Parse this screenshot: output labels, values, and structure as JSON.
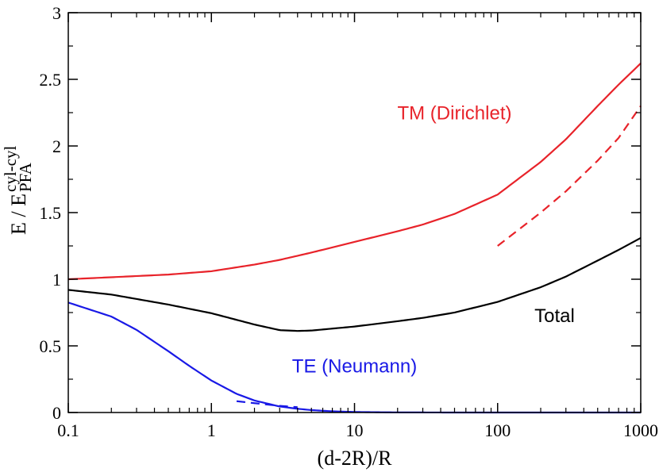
{
  "chart_data": {
    "type": "line",
    "title": "",
    "xlabel": "(d-2R)/R",
    "ylabel": {
      "main": "E / E",
      "superscript": "cyl-cyl",
      "subscript": "PFA"
    },
    "xscale": "log",
    "xlim": [
      0.1,
      1000
    ],
    "ylim": [
      0,
      3
    ],
    "xticks": [
      {
        "value": 0.1,
        "label": "0.1"
      },
      {
        "value": 1,
        "label": "1"
      },
      {
        "value": 10,
        "label": "10"
      },
      {
        "value": 100,
        "label": "100"
      },
      {
        "value": 1000,
        "label": "1000"
      }
    ],
    "yticks": [
      {
        "value": 0,
        "label": "0"
      },
      {
        "value": 0.5,
        "label": "0.5"
      },
      {
        "value": 1,
        "label": "1"
      },
      {
        "value": 1.5,
        "label": "1.5"
      },
      {
        "value": 2,
        "label": "2"
      },
      {
        "value": 2.5,
        "label": "2.5"
      },
      {
        "value": 3,
        "label": "3"
      }
    ],
    "grid": false,
    "series": [
      {
        "name": "TM (Dirichlet)",
        "color": "#e8232a",
        "style": "solid",
        "x": [
          0.1,
          0.2,
          0.5,
          1,
          2,
          3,
          5,
          10,
          20,
          30,
          50,
          100,
          200,
          300,
          500,
          700,
          1000
        ],
        "y": [
          1.0,
          1.015,
          1.035,
          1.06,
          1.11,
          1.145,
          1.2,
          1.28,
          1.36,
          1.41,
          1.49,
          1.635,
          1.88,
          2.05,
          2.3,
          2.46,
          2.62
        ]
      },
      {
        "name": "Total",
        "color": "#000000",
        "style": "solid",
        "x": [
          0.1,
          0.2,
          0.5,
          1,
          2,
          3,
          4,
          5,
          10,
          20,
          30,
          50,
          100,
          200,
          300,
          500,
          700,
          1000
        ],
        "y": [
          0.92,
          0.885,
          0.81,
          0.745,
          0.66,
          0.618,
          0.612,
          0.615,
          0.645,
          0.685,
          0.71,
          0.75,
          0.83,
          0.94,
          1.02,
          1.14,
          1.22,
          1.31
        ]
      },
      {
        "name": "TE (Neumann)",
        "color": "#1919e6",
        "style": "solid",
        "x": [
          0.1,
          0.2,
          0.3,
          0.5,
          0.7,
          1,
          1.5,
          2,
          3,
          4,
          5,
          7,
          10,
          15,
          20,
          50,
          100,
          1000
        ],
        "y": [
          0.825,
          0.72,
          0.62,
          0.46,
          0.35,
          0.24,
          0.14,
          0.09,
          0.045,
          0.028,
          0.018,
          0.009,
          0.004,
          0.002,
          0.001,
          0.0,
          0.0,
          0.0
        ]
      },
      {
        "name": "TM asymptote",
        "color": "#e8232a",
        "style": "dashed",
        "x": [
          100,
          200,
          300,
          500,
          700,
          1000
        ],
        "y": [
          1.25,
          1.5,
          1.66,
          1.89,
          2.06,
          2.3
        ]
      },
      {
        "name": "TE asymptote",
        "color": "#1919e6",
        "style": "dashed",
        "x": [
          1.5,
          2,
          3,
          4
        ],
        "y": [
          0.085,
          0.07,
          0.05,
          0.04
        ]
      }
    ],
    "annotations": [
      {
        "text": "TM (Dirichlet)",
        "color": "#e8232a",
        "x": 50,
        "y": 2.2
      },
      {
        "text": "Total",
        "color": "#000000",
        "x": 250,
        "y": 0.68
      },
      {
        "text": "TE (Neumann)",
        "color": "#1919e6",
        "x": 10,
        "y": 0.3
      }
    ]
  }
}
